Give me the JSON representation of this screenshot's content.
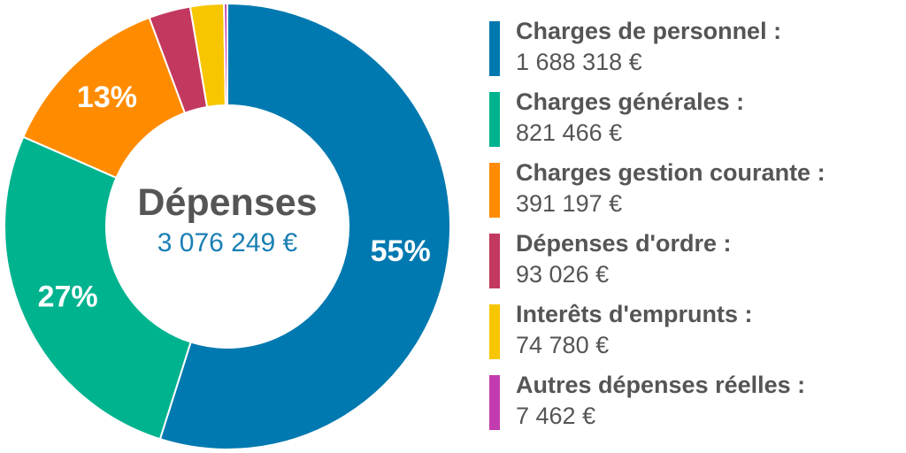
{
  "center": {
    "title": "Dépenses",
    "total": "3 076 249 €"
  },
  "colors": {
    "title": "#555555",
    "total": "#1a7fb4",
    "slice_separator": "#ffffff"
  },
  "chart_data": {
    "type": "pie",
    "donut": true,
    "title": "Dépenses",
    "total_label": "3 076 249 €",
    "categories": [
      "Charges de personnel :",
      "Charges générales :",
      "Charges gestion courante :",
      "Dépenses d'ordre :",
      "Interêts d'emprunts :",
      "Autres dépenses réelles :"
    ],
    "values": [
      1688318,
      821466,
      391197,
      93026,
      74780,
      7462
    ],
    "value_labels": [
      "1 688 318 €",
      "821 466 €",
      "391 197 €",
      "93 026 €",
      "74 780 €",
      "7 462 €"
    ],
    "slice_labels": [
      "55%",
      "27%",
      "13%",
      "",
      "",
      ""
    ],
    "colors": [
      "#0079b0",
      "#00b38f",
      "#ff8c00",
      "#c2385e",
      "#f8c600",
      "#c23cb0"
    ],
    "legend": "right"
  }
}
